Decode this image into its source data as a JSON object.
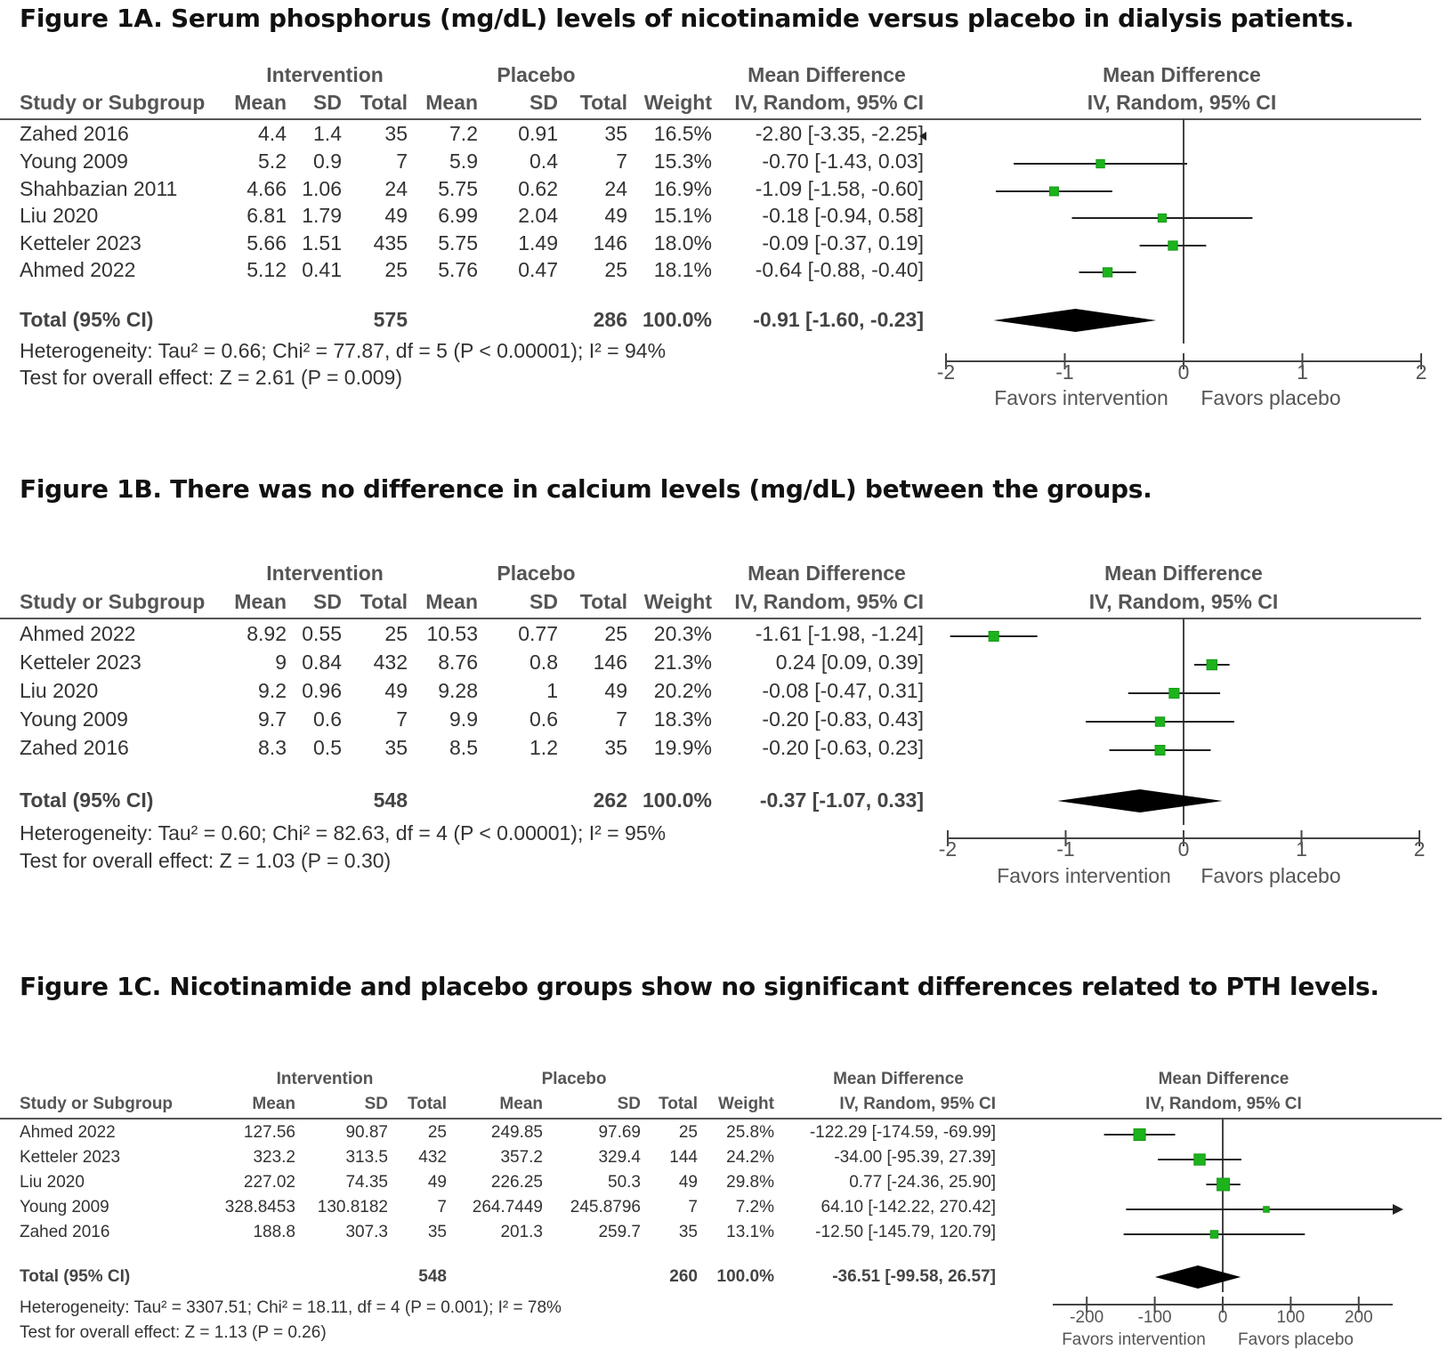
{
  "headers": {
    "intervention": "Intervention",
    "placebo": "Placebo",
    "md": "Mean Difference",
    "study": "Study or Subgroup",
    "mean": "Mean",
    "sd": "SD",
    "total": "Total",
    "weight": "Weight",
    "iv": "IV, Random, 95% CI",
    "total_ci": "Total (95% CI)",
    "favors_int": "Favors intervention",
    "favors_pla": "Favors placebo"
  },
  "chart_data": [
    {
      "type": "table",
      "title": "Figure 1A. Serum phosphorus (mg/dL) levels of nicotinamide versus placebo in dialysis patients.",
      "xlim": [
        -2,
        2
      ],
      "ticks": [
        "-2",
        "-1",
        "0",
        "1",
        "2"
      ],
      "tick_values": [
        -2,
        -1,
        0,
        1,
        2
      ],
      "studies": [
        {
          "name": "Zahed 2016",
          "i_mean": "4.4",
          "i_sd": "1.4",
          "i_total": "35",
          "p_mean": "7.2",
          "p_sd": "0.91",
          "p_total": "35",
          "weight": "16.5%",
          "ci": "-2.80 [-3.35, -2.25]",
          "md": -2.8,
          "lo": -3.35,
          "hi": -2.25
        },
        {
          "name": "Young 2009",
          "i_mean": "5.2",
          "i_sd": "0.9",
          "i_total": "7",
          "p_mean": "5.9",
          "p_sd": "0.4",
          "p_total": "7",
          "weight": "15.3%",
          "ci": "-0.70 [-1.43, 0.03]",
          "md": -0.7,
          "lo": -1.43,
          "hi": 0.03
        },
        {
          "name": "Shahbazian 2011",
          "i_mean": "4.66",
          "i_sd": "1.06",
          "i_total": "24",
          "p_mean": "5.75",
          "p_sd": "0.62",
          "p_total": "24",
          "weight": "16.9%",
          "ci": "-1.09 [-1.58, -0.60]",
          "md": -1.09,
          "lo": -1.58,
          "hi": -0.6
        },
        {
          "name": "Liu 2020",
          "i_mean": "6.81",
          "i_sd": "1.79",
          "i_total": "49",
          "p_mean": "6.99",
          "p_sd": "2.04",
          "p_total": "49",
          "weight": "15.1%",
          "ci": "-0.18 [-0.94, 0.58]",
          "md": -0.18,
          "lo": -0.94,
          "hi": 0.58
        },
        {
          "name": "Ketteler 2023",
          "i_mean": "5.66",
          "i_sd": "1.51",
          "i_total": "435",
          "p_mean": "5.75",
          "p_sd": "1.49",
          "p_total": "146",
          "weight": "18.0%",
          "ci": "-0.09 [-0.37, 0.19]",
          "md": -0.09,
          "lo": -0.37,
          "hi": 0.19
        },
        {
          "name": "Ahmed 2022",
          "i_mean": "5.12",
          "i_sd": "0.41",
          "i_total": "25",
          "p_mean": "5.76",
          "p_sd": "0.47",
          "p_total": "25",
          "weight": "18.1%",
          "ci": "-0.64 [-0.88, -0.40]",
          "md": -0.64,
          "lo": -0.88,
          "hi": -0.4
        }
      ],
      "total": {
        "i_total": "575",
        "p_total": "286",
        "weight": "100.0%",
        "ci": "-0.91 [-1.60, -0.23]",
        "md": -0.91,
        "lo": -1.6,
        "hi": -0.23
      },
      "heterogeneity": "Heterogeneity: Tau² = 0.66; Chi² = 77.87, df = 5 (P < 0.00001); I² = 94%",
      "overall": "Test for overall effect: Z = 2.61 (P = 0.009)"
    },
    {
      "type": "table",
      "title": "Figure 1B. There was no difference in calcium levels (mg/dL) between the groups.",
      "xlim": [
        -2,
        2
      ],
      "ticks": [
        "-2",
        "-1",
        "0",
        "1",
        "2"
      ],
      "tick_values": [
        -2,
        -1,
        0,
        1,
        2
      ],
      "studies": [
        {
          "name": "Ahmed 2022",
          "i_mean": "8.92",
          "i_sd": "0.55",
          "i_total": "25",
          "p_mean": "10.53",
          "p_sd": "0.77",
          "p_total": "25",
          "weight": "20.3%",
          "ci": "-1.61 [-1.98, -1.24]",
          "md": -1.61,
          "lo": -1.98,
          "hi": -1.24
        },
        {
          "name": "Ketteler 2023",
          "i_mean": "9",
          "i_sd": "0.84",
          "i_total": "432",
          "p_mean": "8.76",
          "p_sd": "0.8",
          "p_total": "146",
          "weight": "21.3%",
          "ci": "0.24 [0.09, 0.39]",
          "md": 0.24,
          "lo": 0.09,
          "hi": 0.39
        },
        {
          "name": "Liu 2020",
          "i_mean": "9.2",
          "i_sd": "0.96",
          "i_total": "49",
          "p_mean": "9.28",
          "p_sd": "1",
          "p_total": "49",
          "weight": "20.2%",
          "ci": "-0.08 [-0.47, 0.31]",
          "md": -0.08,
          "lo": -0.47,
          "hi": 0.31
        },
        {
          "name": "Young 2009",
          "i_mean": "9.7",
          "i_sd": "0.6",
          "i_total": "7",
          "p_mean": "9.9",
          "p_sd": "0.6",
          "p_total": "7",
          "weight": "18.3%",
          "ci": "-0.20 [-0.83, 0.43]",
          "md": -0.2,
          "lo": -0.83,
          "hi": 0.43
        },
        {
          "name": "Zahed 2016",
          "i_mean": "8.3",
          "i_sd": "0.5",
          "i_total": "35",
          "p_mean": "8.5",
          "p_sd": "1.2",
          "p_total": "35",
          "weight": "19.9%",
          "ci": "-0.20 [-0.63, 0.23]",
          "md": -0.2,
          "lo": -0.63,
          "hi": 0.23
        }
      ],
      "total": {
        "i_total": "548",
        "p_total": "262",
        "weight": "100.0%",
        "ci": "-0.37 [-1.07, 0.33]",
        "md": -0.37,
        "lo": -1.07,
        "hi": 0.33
      },
      "heterogeneity": "Heterogeneity: Tau² = 0.60; Chi² = 82.63, df = 4 (P < 0.00001); I² = 95%",
      "overall": "Test for overall effect: Z = 1.03 (P = 0.30)"
    },
    {
      "type": "table",
      "title": "Figure 1C. Nicotinamide and placebo groups show no significant differences related to PTH levels.",
      "xlim": [
        -250,
        250
      ],
      "ticks": [
        "-200",
        "-100",
        "0",
        "100",
        "200"
      ],
      "tick_values": [
        -200,
        -100,
        0,
        100,
        200
      ],
      "studies": [
        {
          "name": "Ahmed 2022",
          "i_mean": "127.56",
          "i_sd": "90.87",
          "i_total": "25",
          "p_mean": "249.85",
          "p_sd": "97.69",
          "p_total": "25",
          "weight": "25.8%",
          "ci": "-122.29 [-174.59, -69.99]",
          "md": -122.29,
          "lo": -174.59,
          "hi": -69.99
        },
        {
          "name": "Ketteler 2023",
          "i_mean": "323.2",
          "i_sd": "313.5",
          "i_total": "432",
          "p_mean": "357.2",
          "p_sd": "329.4",
          "p_total": "144",
          "weight": "24.2%",
          "ci": "-34.00 [-95.39, 27.39]",
          "md": -34.0,
          "lo": -95.39,
          "hi": 27.39
        },
        {
          "name": "Liu 2020",
          "i_mean": "227.02",
          "i_sd": "74.35",
          "i_total": "49",
          "p_mean": "226.25",
          "p_sd": "50.3",
          "p_total": "49",
          "weight": "29.8%",
          "ci": "0.77 [-24.36, 25.90]",
          "md": 0.77,
          "lo": -24.36,
          "hi": 25.9
        },
        {
          "name": "Young 2009",
          "i_mean": "328.8453",
          "i_sd": "130.8182",
          "i_total": "7",
          "p_mean": "264.7449",
          "p_sd": "245.8796",
          "p_total": "7",
          "weight": "7.2%",
          "ci": "64.10 [-142.22, 270.42]",
          "md": 64.1,
          "lo": -142.22,
          "hi": 270.42
        },
        {
          "name": "Zahed 2016",
          "i_mean": "188.8",
          "i_sd": "307.3",
          "i_total": "35",
          "p_mean": "201.3",
          "p_sd": "259.7",
          "p_total": "35",
          "weight": "13.1%",
          "ci": "-12.50 [-145.79, 120.79]",
          "md": -12.5,
          "lo": -145.79,
          "hi": 120.79
        }
      ],
      "total": {
        "i_total": "548",
        "p_total": "260",
        "weight": "100.0%",
        "ci": "-36.51 [-99.58, 26.57]",
        "md": -36.51,
        "lo": -99.58,
        "hi": 26.57
      },
      "heterogeneity": "Heterogeneity: Tau² = 3307.51; Chi² = 18.11, df = 4 (P = 0.001); I² = 78%",
      "overall": "Test for overall effect: Z = 1.13 (P = 0.26)"
    }
  ]
}
